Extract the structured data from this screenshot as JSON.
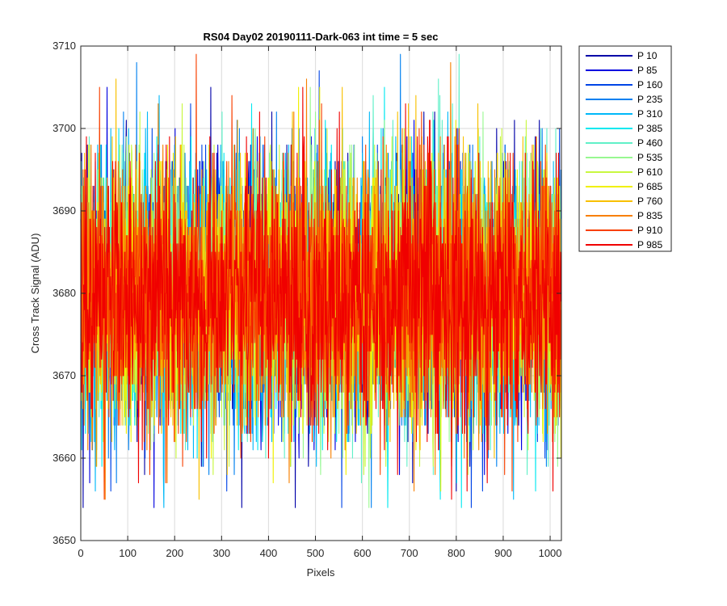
{
  "chart_data": {
    "type": "line",
    "title": "RS04 Day02 20190111-Dark-063 int time = 5 sec",
    "xlabel": "Pixels",
    "ylabel": "Cross Track Signal (ADU)",
    "xlim": [
      0,
      1024
    ],
    "ylim": [
      3650,
      3710
    ],
    "x_ticks": [
      0,
      100,
      200,
      300,
      400,
      500,
      600,
      700,
      800,
      900,
      1000
    ],
    "y_ticks": [
      3650,
      3660,
      3670,
      3680,
      3690,
      3700,
      3710
    ],
    "grid": true,
    "legend_position": "outside-top-right",
    "n_pixels": 1024,
    "noise": {
      "mean": 3680,
      "std": 8,
      "min": 3654,
      "max": 3709
    },
    "series": [
      {
        "name": "P 10",
        "color": "#0000a8"
      },
      {
        "name": "P 85",
        "color": "#0000e0"
      },
      {
        "name": "P 160",
        "color": "#0044e6"
      },
      {
        "name": "P 235",
        "color": "#0080f0"
      },
      {
        "name": "P 310",
        "color": "#00b8f8"
      },
      {
        "name": "P 385",
        "color": "#00e8f0"
      },
      {
        "name": "P 460",
        "color": "#60f0c8"
      },
      {
        "name": "P 535",
        "color": "#98f890"
      },
      {
        "name": "P 610",
        "color": "#c8f840"
      },
      {
        "name": "P 685",
        "color": "#f0f000"
      },
      {
        "name": "P 760",
        "color": "#f8c000"
      },
      {
        "name": "P 835",
        "color": "#f88000"
      },
      {
        "name": "P 910",
        "color": "#f84000"
      },
      {
        "name": "P 985",
        "color": "#f00000"
      }
    ]
  }
}
